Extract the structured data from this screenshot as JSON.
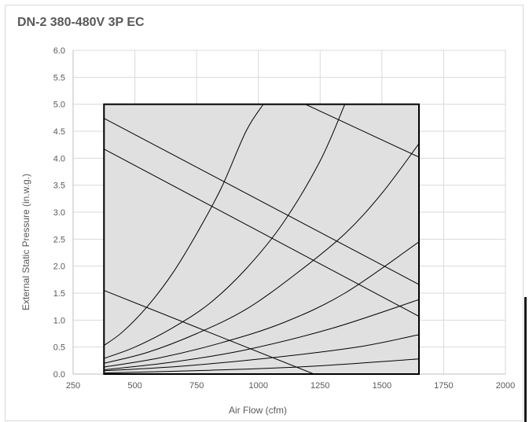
{
  "chart_data": {
    "type": "line",
    "title": "DN-2 380-480V 3P EC",
    "xlabel": "Air Flow (cfm)",
    "ylabel": "External Static Pressure (in.w.g.)",
    "xlim": [
      250,
      2000
    ],
    "ylim": [
      0,
      6
    ],
    "xticks": [
      "250",
      "500",
      "750",
      "1000",
      "1250",
      "1500",
      "1750",
      "2000"
    ],
    "yticks": [
      "0.0",
      "0.5",
      "1.0",
      "1.5",
      "2.0",
      "2.5",
      "3.0",
      "3.5",
      "4.0",
      "4.5",
      "5.0",
      "5.5",
      "6.0"
    ],
    "grid": true,
    "legend": "none",
    "operating_region": {
      "x": [
        375,
        1650
      ],
      "y": [
        0,
        5.0
      ],
      "fill": "#e0e0e0"
    },
    "system_curves": [
      {
        "x": [
          375,
          450,
          550,
          650,
          750,
          850,
          950,
          1020
        ],
        "y": [
          0.53,
          0.78,
          1.25,
          1.85,
          2.6,
          3.45,
          4.5,
          5.0
        ]
      },
      {
        "x": [
          375,
          500,
          650,
          800,
          950,
          1100,
          1250,
          1350
        ],
        "y": [
          0.29,
          0.5,
          0.85,
          1.3,
          1.95,
          2.8,
          3.95,
          5.0
        ]
      },
      {
        "x": [
          375,
          550,
          750,
          950,
          1150,
          1350,
          1500,
          1650
        ],
        "y": [
          0.2,
          0.4,
          0.75,
          1.2,
          1.85,
          2.6,
          3.35,
          4.27
        ]
      },
      {
        "x": [
          375,
          600,
          850,
          1100,
          1350,
          1650
        ],
        "y": [
          0.13,
          0.3,
          0.58,
          0.95,
          1.5,
          2.45
        ]
      },
      {
        "x": [
          375,
          650,
          950,
          1300,
          1650
        ],
        "y": [
          0.08,
          0.22,
          0.45,
          0.85,
          1.38
        ]
      },
      {
        "x": [
          375,
          700,
          1050,
          1400,
          1650
        ],
        "y": [
          0.06,
          0.15,
          0.3,
          0.5,
          0.73
        ]
      },
      {
        "x": [
          375,
          800,
          1200,
          1650
        ],
        "y": [
          0.02,
          0.07,
          0.14,
          0.28
        ]
      }
    ],
    "fan_curves": [
      {
        "x": [
          1190,
          1650
        ],
        "y": [
          5.0,
          4.02
        ]
      },
      {
        "x": [
          375,
          1650
        ],
        "y": [
          4.74,
          1.66
        ]
      },
      {
        "x": [
          375,
          1650
        ],
        "y": [
          4.17,
          1.07
        ]
      },
      {
        "x": [
          375,
          1225
        ],
        "y": [
          1.55,
          0.0
        ]
      }
    ]
  }
}
